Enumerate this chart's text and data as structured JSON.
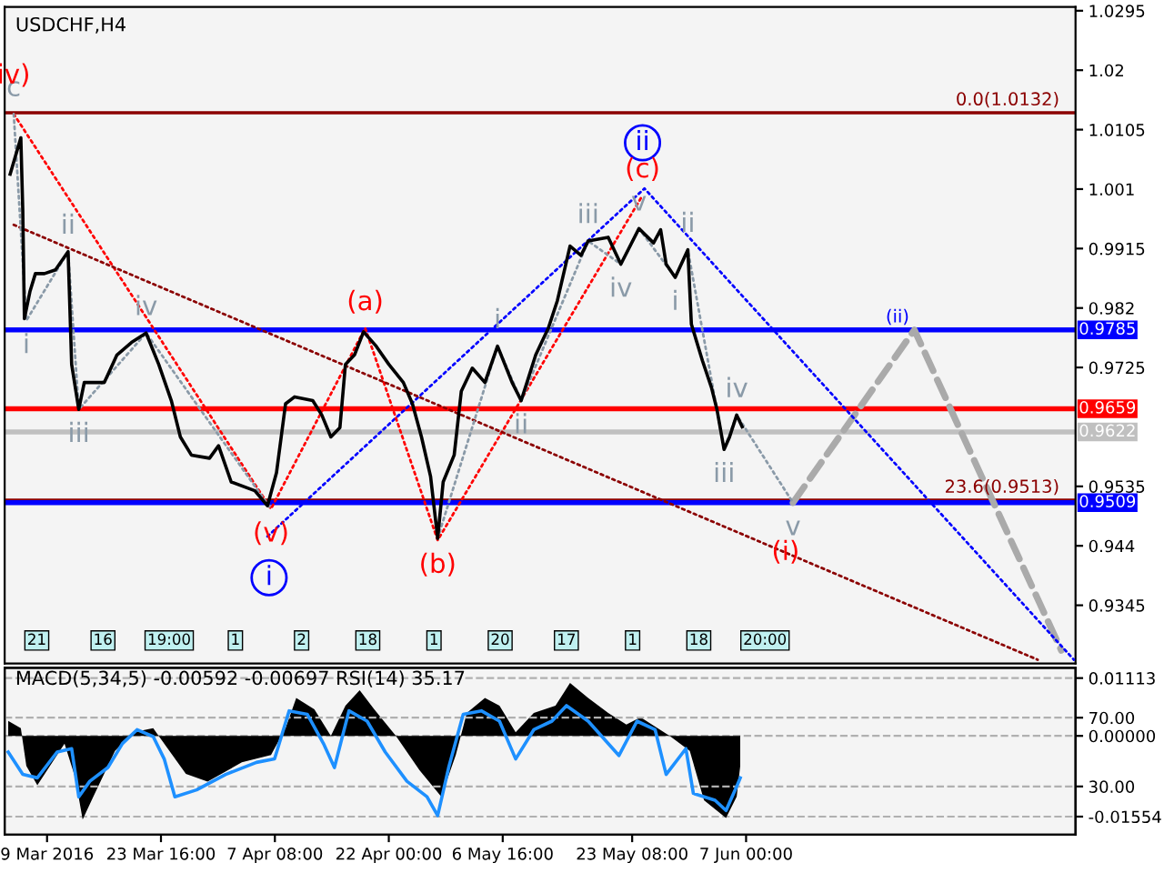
{
  "chart_data": [
    {
      "type": "line",
      "title": "USDCHF,H4",
      "tick_labels": "y",
      "xlim": [
        "2016-03-03T13:00",
        "2016-07-19T10:00"
      ],
      "ylim": [
        0.9252,
        1.0301
      ],
      "yticks": [
        1.0295,
        1.02,
        1.0105,
        1.001,
        0.9915,
        0.982,
        0.9725,
        0.9535,
        0.944,
        0.9345
      ],
      "series": [
        {
          "color": "#aaaaaa",
          "line_style": "dashed",
          "x": [
            "2016-06-13T01:00",
            "2016-06-28T16:00",
            "2016-07-17T14:00"
          ],
          "values": [
            0.9509,
            0.9785,
            0.9273
          ]
        },
        {
          "color": "#0000ff",
          "line_style": "dotted",
          "x": [
            "2016-04-06T09:00",
            "2016-05-24T22:00",
            "2016-07-19T05:00"
          ],
          "values": [
            0.9455,
            1.0011,
            0.9258
          ]
        },
        {
          "type": "scatter",
          "color": "#0000ff",
          "marker": "circle",
          "x": [
            "2016-04-06T14:00",
            "2016-05-24T16:00"
          ],
          "values": [
            0.9389,
            1.0084
          ],
          "value_labels": [
            "i",
            "ii"
          ]
        },
        {
          "color": "#ff0000",
          "line_style": "dotted",
          "x": [
            "2016-03-04T17:00",
            "2016-04-06T20:00",
            "2016-04-18T23:00",
            "2016-04-28T07:00",
            "2016-05-24T16:00"
          ],
          "values": [
            1.013,
            0.9499,
            0.9788,
            0.9449,
            1.0
          ],
          "value_labels": [
            null,
            "(v)",
            "(a)",
            "(b)",
            "(c)"
          ]
        },
        {
          "color": "#8b0000",
          "line_style": "dotted",
          "x": [
            "2016-03-04T17:00",
            "2016-07-14T13:00"
          ],
          "values": [
            0.9953,
            0.9258
          ]
        },
        {
          "color": "#8a9aa8",
          "line_style": "dotted",
          "x": [
            "2016-03-04T17:00",
            "2016-03-06T08:00",
            "2016-03-11T17:00",
            "2016-03-13T02:00",
            "2016-03-21T18:00",
            "2016-04-06T20:00"
          ],
          "values": [
            1.013,
            0.98,
            0.991,
            0.9658,
            0.978,
            0.9499
          ],
          "value_labels": [
            "c",
            "i",
            "ii",
            "iii",
            "iv",
            null
          ]
        },
        {
          "color": "#8a9aa8",
          "line_style": "dotted",
          "x": [
            "2016-04-28T07:00",
            "2016-05-06T00:00",
            "2016-05-09T01:00",
            "2016-05-17T16:00",
            "2016-05-21T21:00",
            "2016-05-24T05:00"
          ],
          "values": [
            0.9452,
            0.9759,
            0.9672,
            0.9927,
            0.989,
            0.9947
          ],
          "value_labels": [
            null,
            "i",
            "ii",
            "iii",
            "iv",
            "v"
          ]
        },
        {
          "color": "#8a9aa8",
          "line_style": "dotted",
          "x": [
            "2016-05-24T05:00",
            "2016-05-28T21:00",
            "2016-05-30T12:00",
            "2016-06-04T04:00",
            "2016-06-05T19:00",
            "2016-06-13T01:00"
          ],
          "values": [
            0.9947,
            0.9869,
            0.9913,
            0.9594,
            0.9649,
            0.9509
          ],
          "value_labels": [
            null,
            "i",
            "ii",
            "iii",
            "iv",
            "v"
          ]
        },
        {
          "color": "#000000",
          "line_style": "solid",
          "x": [
            "2016-03-04T06:00",
            "2016-03-05T15:00",
            "2016-03-05T21:00",
            "2016-03-06T02:00",
            "2016-03-06T19:00",
            "2016-03-07T12:00",
            "2016-03-08T16:00",
            "2016-03-10T02:00",
            "2016-03-11T17:00",
            "2016-03-12T04:00",
            "2016-03-13T02:00",
            "2016-03-13T19:00",
            "2016-03-16T09:00",
            "2016-03-18T00:00",
            "2016-03-19T21:00",
            "2016-03-21T18:00",
            "2016-03-23T09:00",
            "2016-03-25T00:00",
            "2016-03-26T04:00",
            "2016-03-27T14:00",
            "2016-03-29T22:00",
            "2016-03-31T02:00",
            "2016-04-01T17:00",
            "2016-04-04T18:00",
            "2016-04-06T09:00",
            "2016-04-07T13:00",
            "2016-04-08T17:00",
            "2016-04-09T21:00",
            "2016-04-12T05:00",
            "2016-04-13T09:00",
            "2016-04-14T13:00",
            "2016-04-15T17:00",
            "2016-04-16T10:00",
            "2016-04-17T14:00",
            "2016-04-18T18:00",
            "2016-04-20T09:00",
            "2016-04-22T00:00",
            "2016-04-23T21:00",
            "2016-04-25T01:00",
            "2016-04-26T05:00",
            "2016-04-27T09:00",
            "2016-04-28T07:00",
            "2016-04-29T00:00",
            "2016-04-30T10:00",
            "2016-05-01T08:00",
            "2016-05-02T18:00",
            "2016-05-04T09:00",
            "2016-05-06T00:00",
            "2016-05-07T21:00",
            "2016-05-09T01:00",
            "2016-05-10T22:00",
            "2016-05-12T13:00",
            "2016-05-13T17:00",
            "2016-05-15T08:00",
            "2016-05-16T18:00",
            "2016-05-17T16:00",
            "2016-05-20T06:00",
            "2016-05-21T21:00",
            "2016-05-24T05:00",
            "2016-05-26T02:00",
            "2016-05-27T00:00",
            "2016-05-27T17:00",
            "2016-05-28T21:00",
            "2016-05-30T12:00",
            "2016-05-30T23:00",
            "2016-06-01T09:00",
            "2016-06-02T13:00",
            "2016-06-03T06:00",
            "2016-06-04T04:00",
            "2016-06-04T21:00",
            "2016-06-05T19:00",
            "2016-06-06T12:00"
          ],
          "values": [
            1.0034,
            1.0092,
            0.9976,
            0.9803,
            0.9846,
            0.9875,
            0.9875,
            0.9881,
            0.991,
            0.973,
            0.9658,
            0.9701,
            0.9701,
            0.9745,
            0.9765,
            0.978,
            0.973,
            0.9672,
            0.9614,
            0.9585,
            0.958,
            0.96,
            0.9542,
            0.9528,
            0.9504,
            0.9557,
            0.9667,
            0.9678,
            0.9672,
            0.9649,
            0.9614,
            0.9629,
            0.973,
            0.9745,
            0.9782,
            0.9759,
            0.973,
            0.9701,
            0.9667,
            0.9614,
            0.9551,
            0.9452,
            0.9542,
            0.9585,
            0.9687,
            0.9724,
            0.9701,
            0.9759,
            0.9701,
            0.9672,
            0.9745,
            0.9788,
            0.9832,
            0.9919,
            0.9904,
            0.9927,
            0.9933,
            0.989,
            0.9947,
            0.9924,
            0.9945,
            0.989,
            0.9869,
            0.9913,
            0.9794,
            0.9736,
            0.9693,
            0.9658,
            0.9594,
            0.9614,
            0.9649,
            0.963
          ]
        }
      ],
      "ref_lines": [
        {
          "axis": "y",
          "value": 1.0132,
          "color": "#8b0000"
        },
        {
          "axis": "y",
          "value": 0.9513,
          "color": "#8b0000"
        },
        {
          "axis": "y",
          "value": 0.9622,
          "label": "0.9622",
          "color": "#c0c0c0"
        },
        {
          "axis": "y",
          "value": 0.9785,
          "label": "0.9785",
          "color": "#0000ff"
        },
        {
          "axis": "y",
          "value": 0.9659,
          "label": "0.9659",
          "color": "#ff0000"
        },
        {
          "axis": "y",
          "value": 0.9509,
          "label": "0.9509",
          "color": "#0000ff"
        }
      ],
      "annotations": [
        {
          "text": "0.0(1.0132)",
          "x": "2016-07-18T00:00",
          "y": 1.0132
        },
        {
          "text": "23.6(0.9513)",
          "x": "2016-07-18T00:00",
          "y": 0.9513
        },
        {
          "text": "iv)",
          "x": "2016-03-04T17:00",
          "y": 1.013
        },
        {
          "text": "(i)",
          "x": "2016-06-12T02:00",
          "y": 0.9429
        },
        {
          "text": "(ii)",
          "x": "2016-06-28T16:00",
          "y": 0.9785
        },
        "21",
        "16",
        "19:00",
        "1",
        "2",
        "18",
        "1",
        "20",
        "17",
        "1",
        "18",
        "20:00"
      ]
    },
    {
      "type": "area",
      "title": "MACD(5,34,5) -0.00592 -0.00697 RSI(14) 35.17",
      "grid": "y",
      "xlim": [
        "2016-03-03T13:00",
        "2016-07-19T10:00"
      ],
      "ylim": [
        -0.019,
        0.0131
      ],
      "y2lim": [
        2,
        99
      ],
      "xticks": [
        {
          "value": "2016-03-09T00:00",
          "label": "9 Mar 2016"
        },
        {
          "value": "2016-03-23T16:00",
          "label": "23 Mar 16:00"
        },
        {
          "value": "2016-04-07T08:00",
          "label": "7 Apr 08:00"
        },
        {
          "value": "2016-04-22T00:00",
          "label": "22 Apr 00:00"
        },
        {
          "value": "2016-05-06T16:00",
          "label": "6 May 16:00"
        },
        {
          "value": "2016-05-23T08:00",
          "label": "23 May 08:00"
        },
        {
          "value": "2016-06-07T00:00",
          "label": "7 Jun 00:00"
        }
      ],
      "yticks": [
        0.01113,
        {
          "value": 0,
          "label": "0.00000"
        },
        -0.01554
      ],
      "y2ticks": [
        {
          "value": 70,
          "label": "70.00"
        },
        {
          "value": 30,
          "label": "30.00"
        }
      ],
      "series": [
        {
          "color": "#000000",
          "x": [
            "2016-03-04T00:00",
            "2016-03-05T15:00",
            "2016-03-06T08:00",
            "2016-03-07T18:00",
            "2016-03-11T06:00",
            "2016-03-12T15:00",
            "2016-03-13T14:00",
            "2016-03-14T23:00",
            "2016-03-17T18:00",
            "2016-03-20T02:00",
            "2016-03-22T16:00",
            "2016-03-24T02:00",
            "2016-03-26T21:00",
            "2016-03-29T16:00",
            "2016-04-03T02:00",
            "2016-04-06T20:00",
            "2016-04-08T17:00",
            "2016-04-10T02:00",
            "2016-04-12T10:00",
            "2016-04-14T13:00",
            "2016-04-16T10:00",
            "2016-04-18T06:00",
            "2016-04-20T03:00",
            "2016-04-22T22:00",
            "2016-04-25T23:00",
            "2016-04-28T18:00",
            "2016-04-30T15:00",
            "2016-05-02T01:00",
            "2016-05-04T09:00",
            "2016-05-06T06:00",
            "2016-05-08T08:00",
            "2016-05-10T16:00",
            "2016-05-13T11:00",
            "2016-05-15T08:00",
            "2016-05-17T16:00",
            "2016-05-20T06:00",
            "2016-05-22T14:00",
            "2016-05-24T10:00",
            "2016-05-28T04:00",
            "2016-05-30T18:00",
            "2016-06-01T14:00",
            "2016-06-04T10:00",
            "2016-06-05T19:00",
            "2016-06-06T06:00"
          ],
          "values": [
            0.0029,
            0.0015,
            -0.0058,
            -0.0095,
            -0.0015,
            -0.008,
            -0.0161,
            -0.0117,
            -0.0029,
            0.0007,
            0.0015,
            -0.0015,
            -0.0073,
            -0.0088,
            -0.0051,
            -0.0037,
            0.0015,
            0.0073,
            0.0051,
            0.0,
            0.0058,
            0.0088,
            0.0051,
            0.0,
            -0.0066,
            -0.0117,
            -0.0037,
            0.0044,
            0.0073,
            0.0058,
            0.0007,
            0.0044,
            0.0058,
            0.0102,
            0.0073,
            0.0044,
            0.0022,
            0.0036,
            0.0,
            -0.0029,
            -0.0124,
            -0.0158,
            -0.0117,
            -0.0058
          ]
        },
        {
          "type": "line",
          "axis": "y2",
          "color": "#1e90ff",
          "x": [
            "2016-03-04T00:00",
            "2016-03-05T21:00",
            "2016-03-07T18:00",
            "2016-03-10T07:00",
            "2016-03-12T04:00",
            "2016-03-13T02:00",
            "2016-03-14T12:00",
            "2016-03-16T20:00",
            "2016-03-18T17:00",
            "2016-03-20T14:00",
            "2016-03-22T16:00",
            "2016-03-24T02:00",
            "2016-03-25T11:00",
            "2016-03-28T06:00",
            "2016-04-01T00:00",
            "2016-04-04T23:00",
            "2016-04-07T07:00",
            "2016-04-09T04:00",
            "2016-04-11T12:00",
            "2016-04-13T14:00",
            "2016-04-15T00:00",
            "2016-04-16T21:00",
            "2016-04-19T05:00",
            "2016-04-21T13:00",
            "2016-04-24T08:00",
            "2016-04-26T22:00",
            "2016-04-28T07:00",
            "2016-04-29T17:00",
            "2016-05-01T14:00",
            "2016-05-03T22:00",
            "2016-05-06T06:00",
            "2016-05-08T08:00",
            "2016-05-10T16:00",
            "2016-05-13T00:00",
            "2016-05-14T21:00",
            "2016-05-17T16:00",
            "2016-05-21T15:00",
            "2016-05-23T23:00",
            "2016-05-26T07:00",
            "2016-05-27T17:00",
            "2016-05-30T06:00",
            "2016-05-31T05:00",
            "2016-06-03T00:00",
            "2016-06-04T10:00",
            "2016-06-05T19:00",
            "2016-06-06T06:00"
          ],
          "values": [
            50,
            37,
            35,
            50,
            52,
            24,
            33,
            41,
            55,
            63,
            59,
            46,
            24,
            28,
            37,
            44,
            46,
            74,
            72,
            55,
            41,
            74,
            68,
            50,
            33,
            24,
            13,
            41,
            72,
            74,
            68,
            46,
            63,
            68,
            77,
            68,
            48,
            68,
            63,
            37,
            52,
            26,
            22,
            16,
            30,
            35
          ]
        }
      ]
    }
  ]
}
